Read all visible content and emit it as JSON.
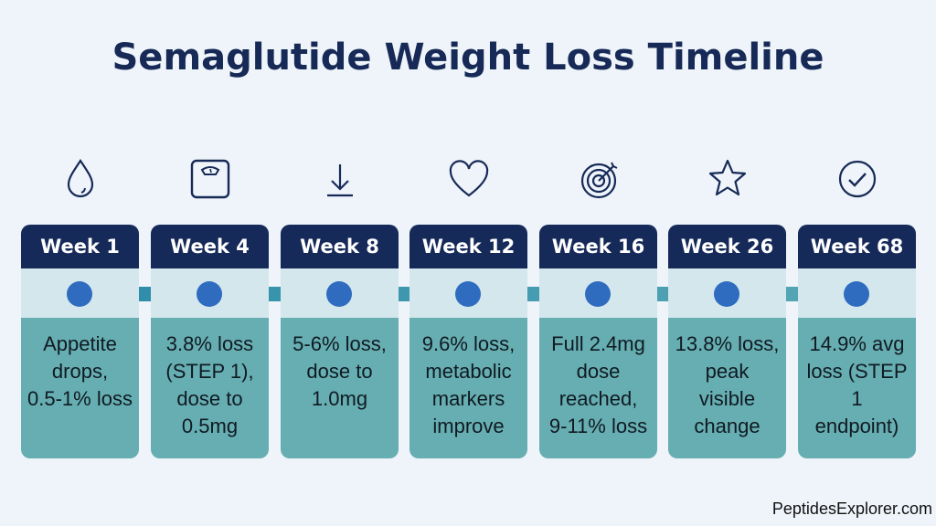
{
  "title": "Semaglutide Weight Loss Timeline",
  "colors": {
    "header": "#162a5a",
    "band": "#d3e7ec",
    "track": "#2a8aa8",
    "dot": "#2f6cc0",
    "body": "#66aeb2"
  },
  "milestones": [
    {
      "icon": "water-drop-icon",
      "label": "Week 1",
      "text": "Appetite\ndrops,\n0.5-1% loss"
    },
    {
      "icon": "scale-icon",
      "label": "Week 4",
      "text": "3.8% loss\n(STEP 1),\ndose to\n0.5mg"
    },
    {
      "icon": "download-arrow-icon",
      "label": "Week 8",
      "text": "5-6% loss,\ndose to\n1.0mg"
    },
    {
      "icon": "heart-icon",
      "label": "Week 12",
      "text": "9.6% loss,\nmetabolic\nmarkers\nimprove"
    },
    {
      "icon": "target-icon",
      "label": "Week 16",
      "text": "Full 2.4mg\ndose\nreached,\n9-11% loss"
    },
    {
      "icon": "star-icon",
      "label": "Week 26",
      "text": "13.8% loss,\npeak\nvisible\nchange"
    },
    {
      "icon": "check-circle-icon",
      "label": "Week 68",
      "text": "14.9% avg\nloss (STEP\n1\nendpoint)"
    }
  ],
  "footer": "PeptidesExplorer.com"
}
